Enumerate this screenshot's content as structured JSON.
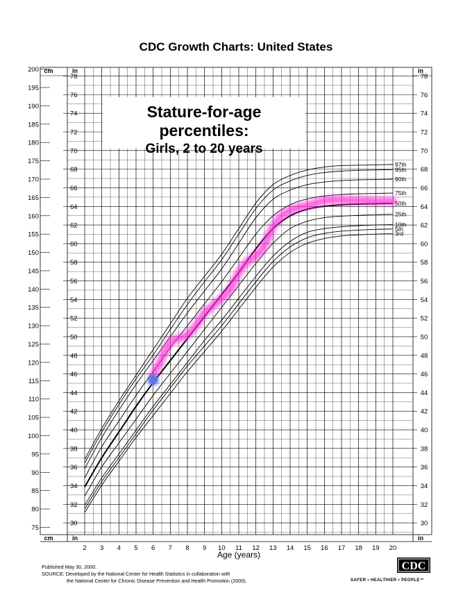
{
  "header": {
    "title": "CDC Growth Charts: United States"
  },
  "chart_title": {
    "line1": "Stature-for-age percentiles:",
    "line2": "Girls, 2 to 20 years"
  },
  "footer": {
    "published": "Published May 30, 2000.",
    "source_line1": "SOURCE: Developed by the National Center for Health Statistics in collaboration with",
    "source_line2": "the National Center for Chronic Disease Prevention and Health Promotion (2000)."
  },
  "logo": {
    "text": "CDC",
    "tagline": "SAFER • HEALTHIER • PEOPLE™"
  },
  "colors": {
    "highlight": "#ff33dd",
    "point": "#5a78e6",
    "grid": "#000000"
  },
  "chart_data": {
    "type": "line",
    "xlabel": "Age (years)",
    "x_ticks": [
      2,
      3,
      4,
      5,
      6,
      7,
      8,
      9,
      10,
      11,
      12,
      13,
      14,
      15,
      16,
      17,
      18,
      19,
      20
    ],
    "xlim": [
      2,
      20
    ],
    "left_unit_top": "cm",
    "left_unit_bottom": "cm",
    "inch_unit_label": "in",
    "cm_ticks": [
      75,
      80,
      85,
      90,
      95,
      100,
      105,
      110,
      115,
      120,
      125,
      130,
      135,
      140,
      145,
      150,
      155,
      160,
      165,
      170,
      175,
      180,
      185,
      190,
      195,
      200
    ],
    "cm_lim": [
      73,
      200.5
    ],
    "in_ticks": [
      30,
      32,
      34,
      36,
      38,
      40,
      42,
      44,
      46,
      48,
      50,
      52,
      54,
      56,
      58,
      60,
      62,
      64,
      66,
      68,
      70,
      72,
      74,
      76,
      78
    ],
    "grid": true,
    "x": [
      2,
      3,
      4,
      5,
      6,
      7,
      8,
      9,
      10,
      11,
      12,
      13,
      14,
      15,
      16,
      17,
      18,
      19,
      20
    ],
    "series": [
      {
        "name": "97th",
        "values": [
          93.5,
          102,
          109.5,
          116.5,
          123.5,
          130.5,
          137.5,
          143.5,
          149.5,
          156.5,
          163.5,
          168.5,
          171,
          172.5,
          173.3,
          173.7,
          173.8,
          173.9,
          174
        ]
      },
      {
        "name": "95th",
        "values": [
          92.5,
          101,
          108.5,
          115.5,
          122,
          129,
          135.8,
          142,
          148,
          155,
          162,
          167,
          169.5,
          171,
          171.8,
          172.2,
          172.4,
          172.5,
          172.6
        ]
      },
      {
        "name": "90th",
        "values": [
          91,
          99.5,
          107,
          114,
          120.5,
          127,
          133.5,
          139.5,
          145.5,
          152.5,
          159.5,
          164.5,
          167,
          168.5,
          169.2,
          169.6,
          169.8,
          169.9,
          170
        ]
      },
      {
        "name": "75th",
        "values": [
          88.5,
          97,
          104,
          111,
          117.5,
          124,
          130,
          136,
          142,
          148.5,
          155,
          160,
          163,
          164.6,
          165.4,
          165.8,
          166,
          166.1,
          166.2
        ]
      },
      {
        "name": "50th",
        "values": [
          86,
          94,
          101,
          108,
          114.5,
          120.5,
          126.5,
          132.5,
          138.5,
          144.5,
          151,
          156.5,
          160,
          161.8,
          162.6,
          163,
          163.2,
          163.3,
          163.4
        ]
      },
      {
        "name": "25th",
        "values": [
          83.5,
          91.5,
          98,
          104.5,
          111,
          117,
          123,
          129,
          135,
          141,
          147,
          152.5,
          156.5,
          158.5,
          159.5,
          159.9,
          160.1,
          160.3,
          160.4
        ]
      },
      {
        "name": "10th",
        "values": [
          81,
          88.5,
          95,
          101.5,
          108,
          114,
          120,
          126,
          131.5,
          137.5,
          143.5,
          149,
          153,
          155.5,
          156.5,
          157,
          157.3,
          157.5,
          157.6
        ]
      },
      {
        "name": "5th",
        "values": [
          80,
          87.5,
          94,
          100.5,
          107,
          113,
          119,
          124.5,
          130,
          136,
          142,
          147.5,
          151.5,
          154,
          155.2,
          155.8,
          156.1,
          156.3,
          156.4
        ]
      },
      {
        "name": "3rd",
        "values": [
          79,
          86.5,
          93,
          99.5,
          105.5,
          111.5,
          117.5,
          123,
          128.5,
          134.5,
          140.5,
          146,
          150,
          152.5,
          153.8,
          154.5,
          154.8,
          155,
          155.1
        ]
      }
    ],
    "highlight_path": {
      "x": [
        6,
        6.5,
        7,
        7.5,
        8,
        8.5,
        9,
        9.5,
        10,
        10.5,
        11,
        11.5,
        12,
        12.5,
        13,
        13.5,
        14,
        14.5,
        15,
        15.5,
        16,
        16.5,
        17,
        17.5,
        18,
        18.5,
        19,
        19.5,
        20
      ],
      "y": [
        116.5,
        121,
        125.5,
        126.5,
        127.5,
        130,
        133.5,
        135.5,
        137.5,
        140,
        144.5,
        147.5,
        149,
        152,
        157,
        160,
        161.5,
        162.3,
        162.8,
        163.5,
        164.2,
        164.3,
        164.3,
        164.2,
        164.2,
        164.1,
        164,
        164,
        164
      ]
    },
    "marked_point": {
      "x": 6,
      "y": 115.2
    }
  }
}
